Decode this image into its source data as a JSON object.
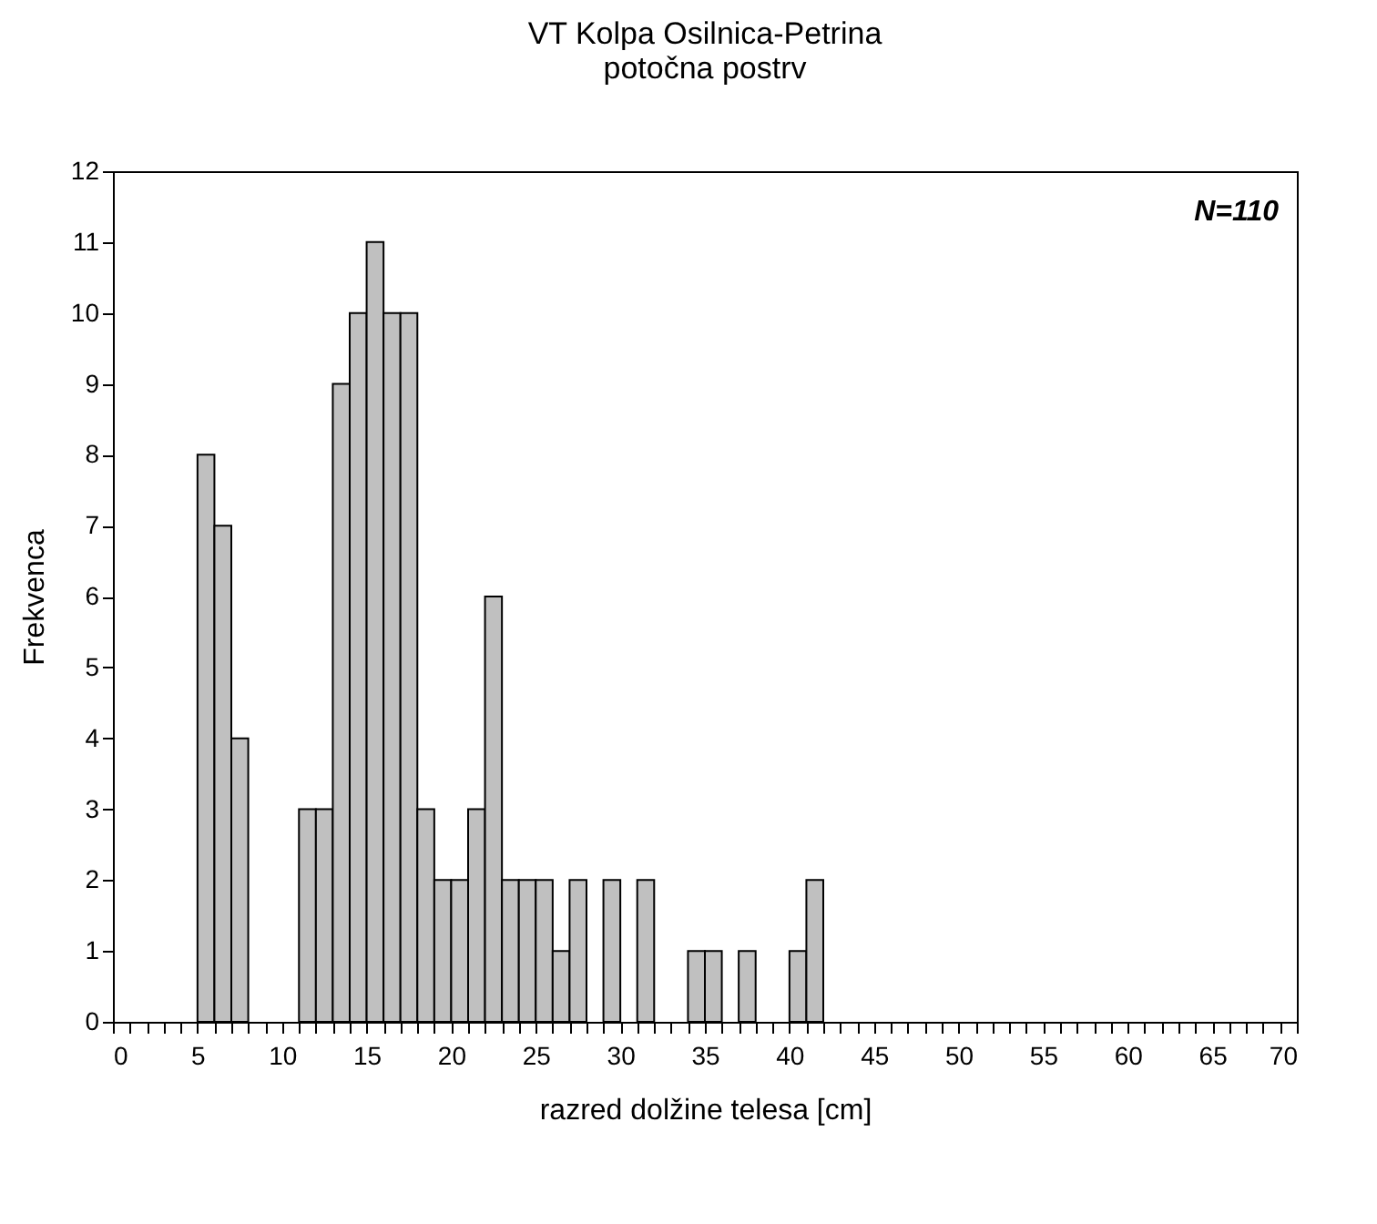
{
  "chart_data": {
    "type": "histogram",
    "title": "VT Kolpa Osilnica-Petrina",
    "subtitle": "potočna postrv",
    "xlabel": "razred dolžine telesa [cm]",
    "ylabel": "Frekvenca",
    "bins": [
      5,
      6,
      7,
      8,
      9,
      10,
      11,
      12,
      13,
      14,
      15,
      16,
      17,
      18,
      19,
      20,
      21,
      22,
      23,
      24,
      25,
      26,
      27,
      28,
      29,
      30,
      31,
      32,
      33,
      34,
      35,
      36,
      37,
      38,
      39,
      40,
      41,
      42
    ],
    "values": [
      8,
      7,
      4,
      0,
      0,
      0,
      3,
      3,
      9,
      10,
      11,
      10,
      10,
      3,
      2,
      2,
      3,
      6,
      2,
      2,
      2,
      1,
      2,
      0,
      2,
      0,
      2,
      0,
      0,
      1,
      1,
      0,
      1,
      0,
      0,
      1,
      2
    ],
    "color": "#c0c0c0",
    "xlim": [
      0,
      70
    ],
    "xticks": [
      0,
      {
        "value": 1,
        "label": null
      },
      {
        "value": 2,
        "label": null
      },
      {
        "value": 3,
        "label": null
      },
      {
        "value": 4,
        "label": null
      },
      5,
      {
        "value": 6,
        "label": null
      },
      {
        "value": 7,
        "label": null
      },
      {
        "value": 8,
        "label": null
      },
      {
        "value": 9,
        "label": null
      },
      10,
      {
        "value": 11,
        "label": null
      },
      {
        "value": 12,
        "label": null
      },
      {
        "value": 13,
        "label": null
      },
      {
        "value": 14,
        "label": null
      },
      15,
      {
        "value": 16,
        "label": null
      },
      {
        "value": 17,
        "label": null
      },
      {
        "value": 18,
        "label": null
      },
      {
        "value": 19,
        "label": null
      },
      20,
      {
        "value": 21,
        "label": null
      },
      {
        "value": 22,
        "label": null
      },
      {
        "value": 23,
        "label": null
      },
      {
        "value": 24,
        "label": null
      },
      25,
      {
        "value": 26,
        "label": null
      },
      {
        "value": 27,
        "label": null
      },
      {
        "value": 28,
        "label": null
      },
      {
        "value": 29,
        "label": null
      },
      30,
      {
        "value": 31,
        "label": null
      },
      {
        "value": 32,
        "label": null
      },
      {
        "value": 33,
        "label": null
      },
      {
        "value": 34,
        "label": null
      },
      35,
      {
        "value": 36,
        "label": null
      },
      {
        "value": 37,
        "label": null
      },
      {
        "value": 38,
        "label": null
      },
      {
        "value": 39,
        "label": null
      },
      40,
      {
        "value": 41,
        "label": null
      },
      {
        "value": 42,
        "label": null
      },
      {
        "value": 43,
        "label": null
      },
      {
        "value": 44,
        "label": null
      },
      45,
      {
        "value": 46,
        "label": null
      },
      {
        "value": 47,
        "label": null
      },
      {
        "value": 48,
        "label": null
      },
      {
        "value": 49,
        "label": null
      },
      50,
      {
        "value": 51,
        "label": null
      },
      {
        "value": 52,
        "label": null
      },
      {
        "value": 53,
        "label": null
      },
      {
        "value": 54,
        "label": null
      },
      55,
      {
        "value": 56,
        "label": null
      },
      {
        "value": 57,
        "label": null
      },
      {
        "value": 58,
        "label": null
      },
      {
        "value": 59,
        "label": null
      },
      60,
      {
        "value": 61,
        "label": null
      },
      {
        "value": 62,
        "label": null
      },
      {
        "value": 63,
        "label": null
      },
      {
        "value": 64,
        "label": null
      },
      65,
      {
        "value": 66,
        "label": null
      },
      {
        "value": 67,
        "label": null
      },
      {
        "value": 68,
        "label": null
      },
      {
        "value": 69,
        "label": null
      },
      70
    ],
    "ylim": [
      0,
      12
    ],
    "yticks": [
      0,
      1,
      2,
      3,
      4,
      5,
      6,
      7,
      8,
      9,
      10,
      11,
      12
    ],
    "grid": false,
    "annotations": [
      "N=110"
    ]
  }
}
